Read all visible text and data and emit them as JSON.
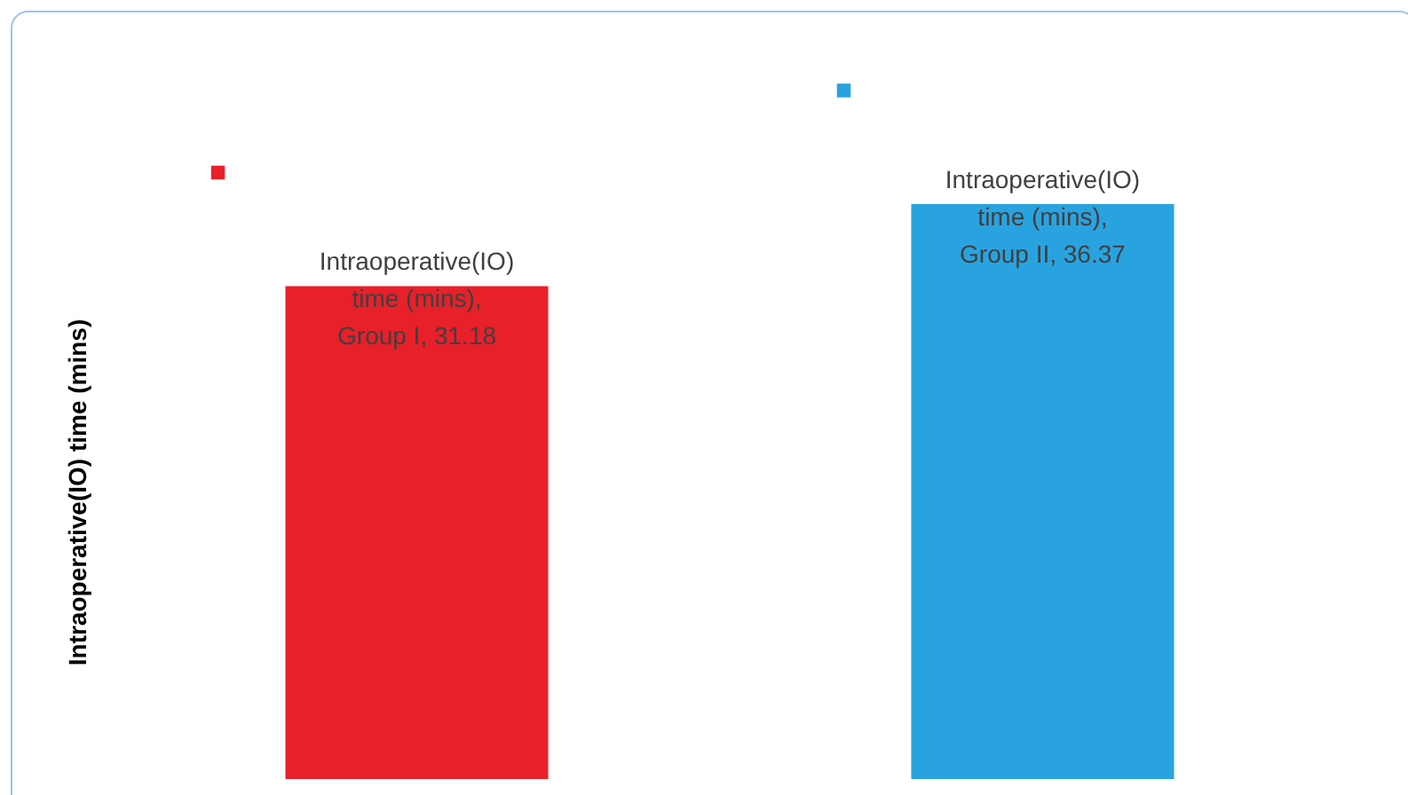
{
  "chart_data": {
    "type": "bar",
    "ylabel": "Intraoperative(IO) time (mins)",
    "categories": [
      null,
      null
    ],
    "values": [
      31.18,
      36.37
    ],
    "colors": [
      "#e8202a",
      "#29a3e0"
    ],
    "value_labels": [
      "Intraoperative(IO) time (mins), Group I, 31.18",
      "Intraoperative(IO) time (mins), Group II, 36.37"
    ],
    "tick_labels": false,
    "grid": false
  }
}
